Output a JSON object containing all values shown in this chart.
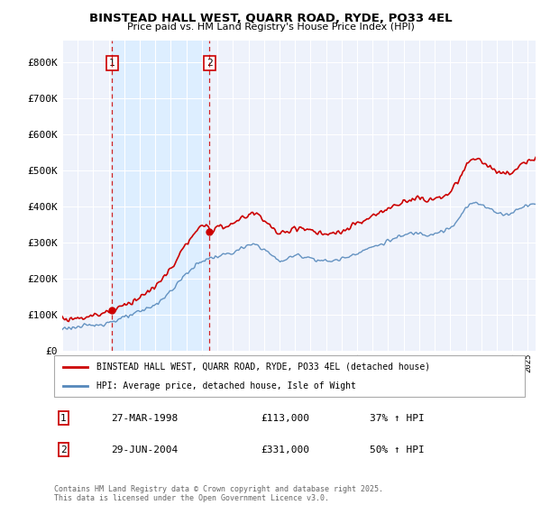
{
  "title1": "BINSTEAD HALL WEST, QUARR ROAD, RYDE, PO33 4EL",
  "title2": "Price paid vs. HM Land Registry's House Price Index (HPI)",
  "legend_label1": "BINSTEAD HALL WEST, QUARR ROAD, RYDE, PO33 4EL (detached house)",
  "legend_label2": "HPI: Average price, detached house, Isle of Wight",
  "sale1_date": "27-MAR-1998",
  "sale1_price": "£113,000",
  "sale1_hpi": "37% ↑ HPI",
  "sale2_date": "29-JUN-2004",
  "sale2_price": "£331,000",
  "sale2_hpi": "50% ↑ HPI",
  "footer": "Contains HM Land Registry data © Crown copyright and database right 2025.\nThis data is licensed under the Open Government Licence v3.0.",
  "red_color": "#cc0000",
  "blue_color": "#5588bb",
  "shade_color": "#ddeeff",
  "bg_color": "#eef2fb",
  "grid_color": "#ffffff",
  "ylim": [
    0,
    860000
  ],
  "xlim_start": 1995.0,
  "xlim_end": 2025.5,
  "sale1_x": 1998.22,
  "sale1_y": 113000,
  "sale2_x": 2004.49,
  "sale2_y": 331000
}
